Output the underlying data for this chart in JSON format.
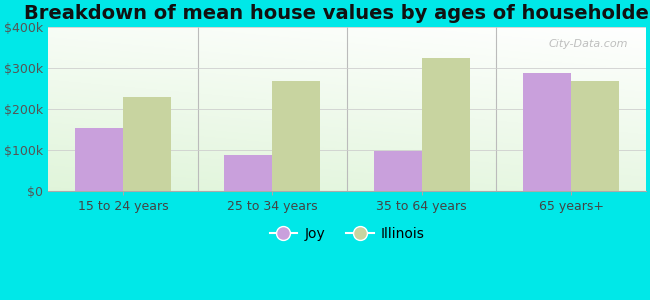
{
  "title": "Breakdown of mean house values by ages of householders",
  "categories": [
    "15 to 24 years",
    "25 to 34 years",
    "35 to 64 years",
    "65 years+"
  ],
  "joy_values": [
    155000,
    88000,
    97000,
    288000
  ],
  "illinois_values": [
    230000,
    270000,
    325000,
    268000
  ],
  "joy_color": "#c9a0dc",
  "illinois_color": "#c8d4a0",
  "background_color": "#00e8e8",
  "ylim": [
    0,
    400000
  ],
  "yticks": [
    0,
    100000,
    200000,
    300000,
    400000
  ],
  "ytick_labels": [
    "$0",
    "$100k",
    "$200k",
    "$300k",
    "$400k"
  ],
  "title_fontsize": 14,
  "legend_joy": "Joy",
  "legend_illinois": "Illinois",
  "bar_width": 0.32,
  "watermark": "City-Data.com"
}
